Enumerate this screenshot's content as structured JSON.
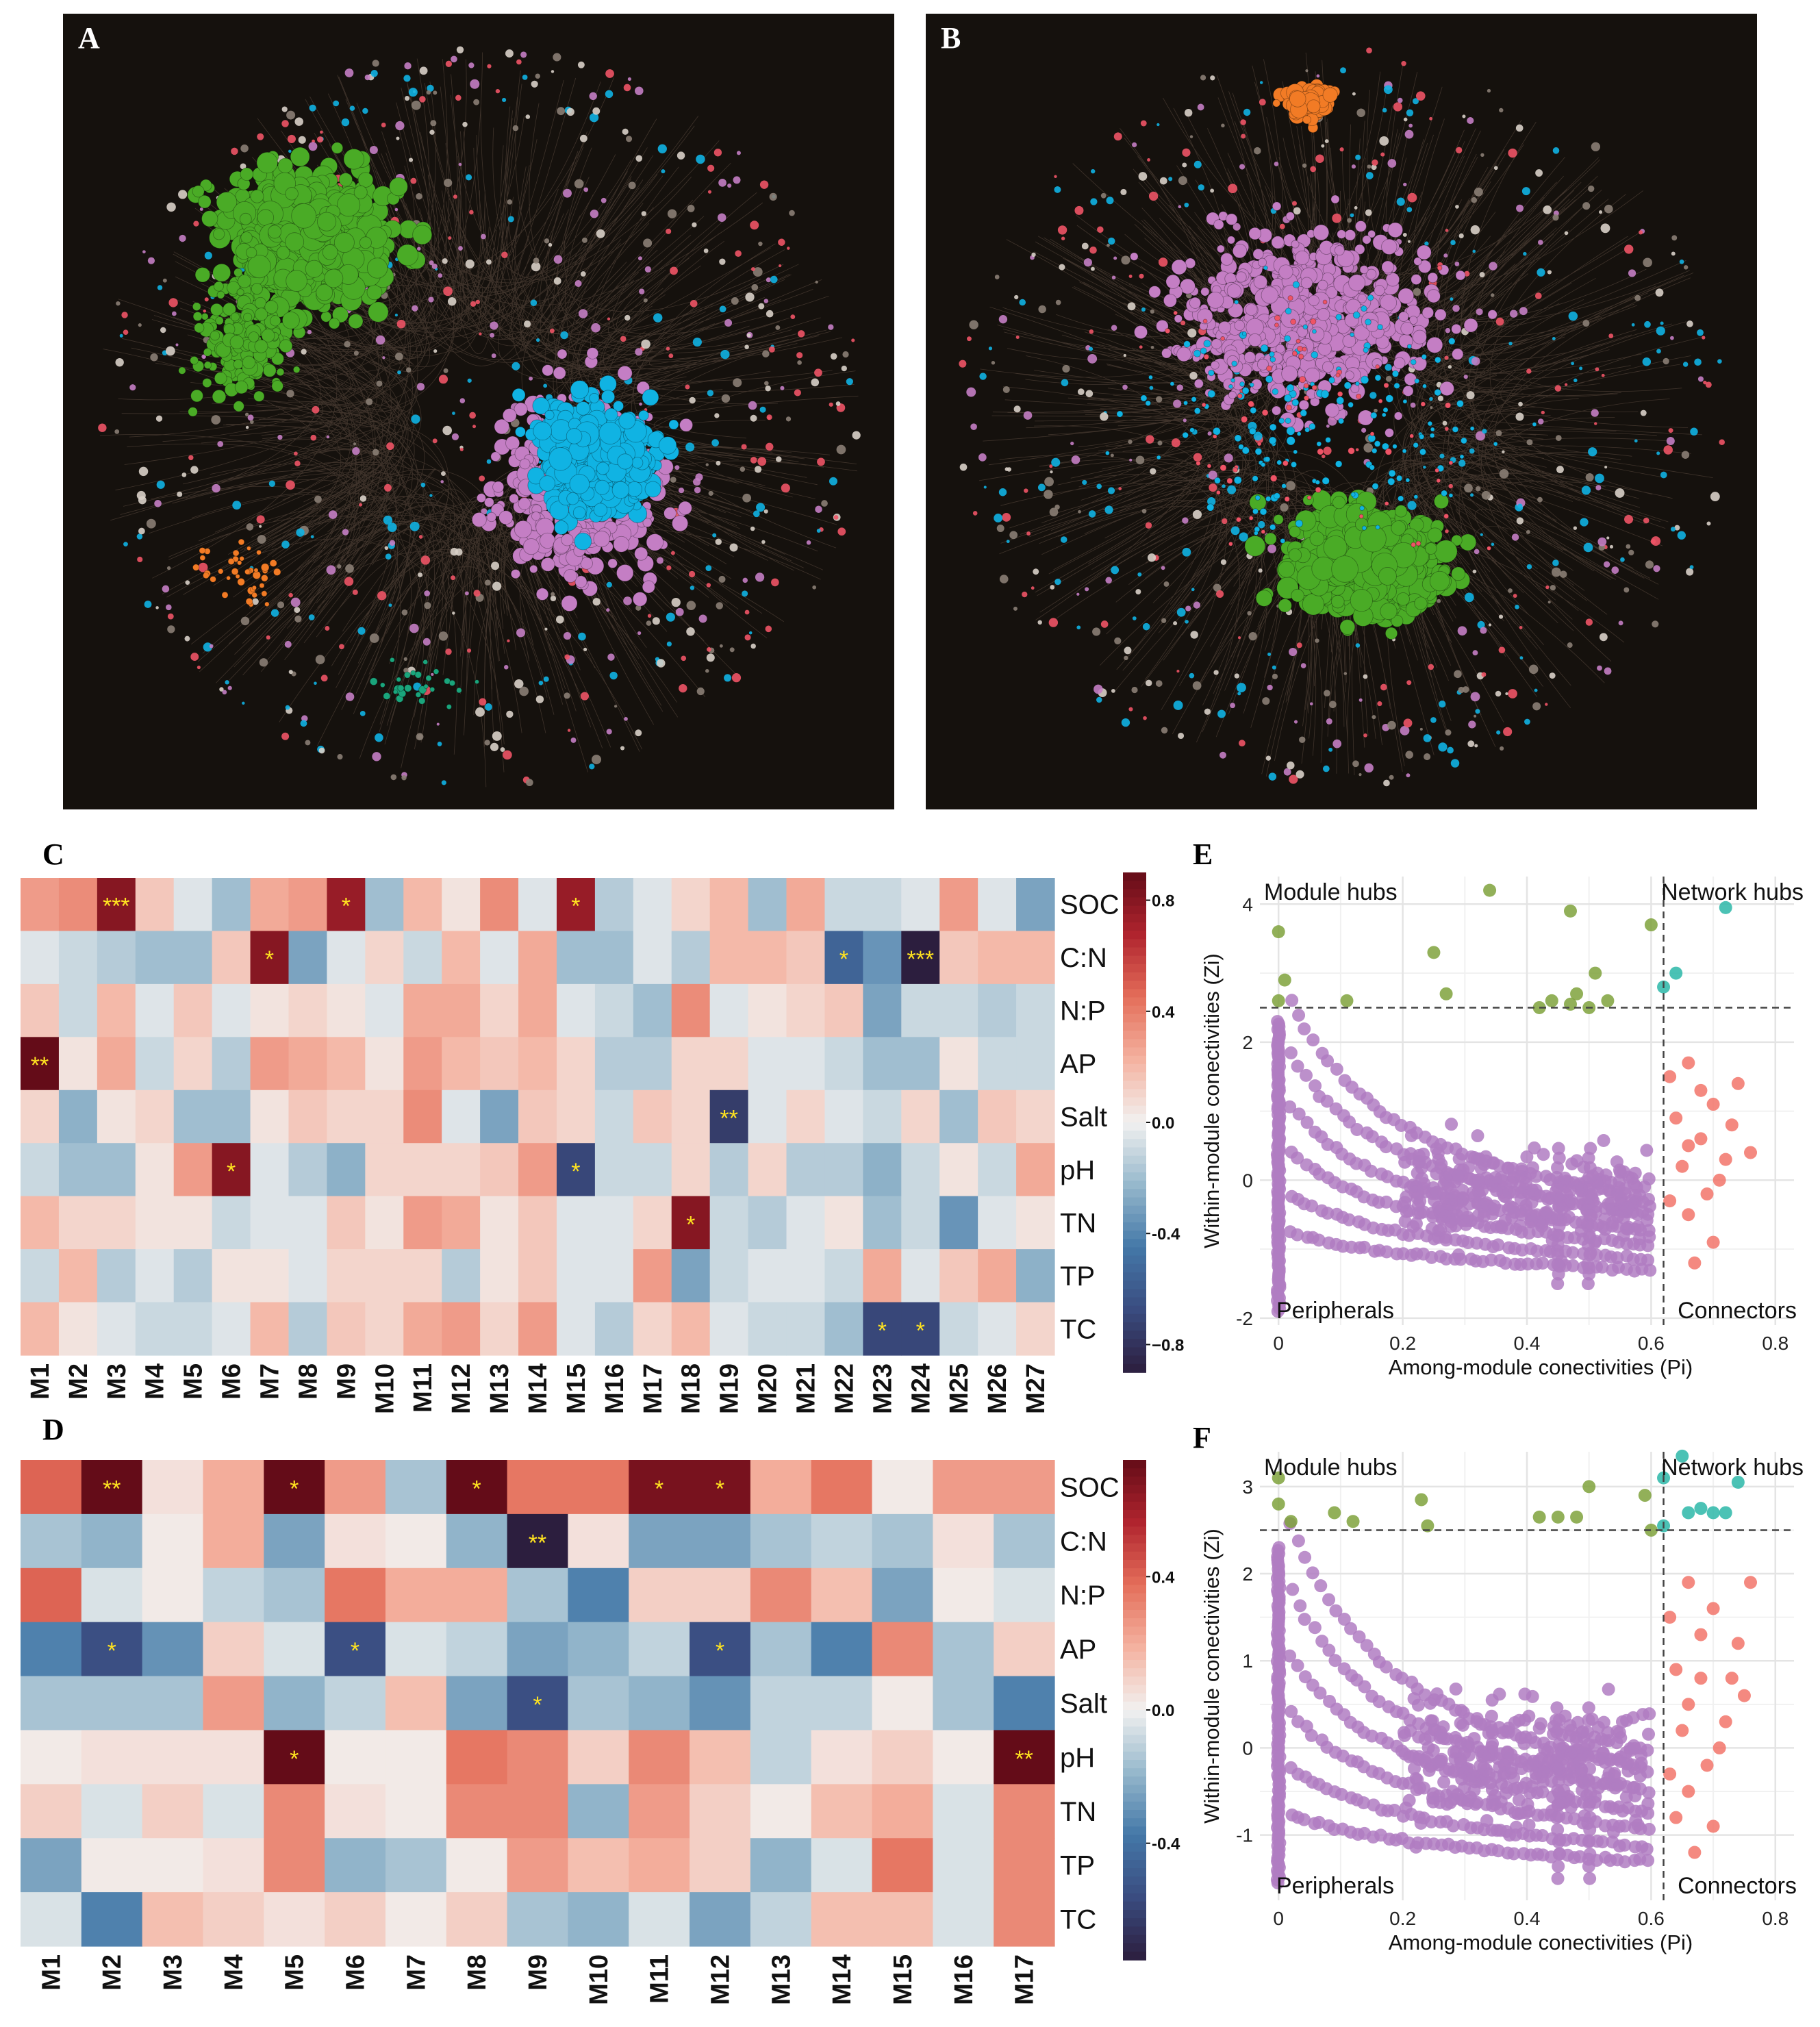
{
  "panels": {
    "A": {
      "letter": "A"
    },
    "B": {
      "letter": "B"
    },
    "C": {
      "letter": "C"
    },
    "D": {
      "letter": "D"
    },
    "E": {
      "letter": "E"
    },
    "F": {
      "letter": "F"
    }
  },
  "network_modules_palette": {
    "green": "#4aab26",
    "cyan": "#10b3e3",
    "pink": "#c47ec4",
    "orange": "#f27b25",
    "red": "#ee5466",
    "teal": "#1aa57c",
    "grey": "#8a7e74"
  },
  "chart_data": [
    {
      "id": "C",
      "type": "heatmap",
      "rows": [
        "SOC",
        "C:N",
        "N:P",
        "AP",
        "Salt",
        "pH",
        "TN",
        "TP",
        "TC"
      ],
      "columns": [
        "M1",
        "M2",
        "M3",
        "M4",
        "M5",
        "M6",
        "M7",
        "M8",
        "M9",
        "M10",
        "M11",
        "M12",
        "M13",
        "M14",
        "M15",
        "M16",
        "M17",
        "M18",
        "M19",
        "M20",
        "M21",
        "M22",
        "M23",
        "M24",
        "M25",
        "M26",
        "M27"
      ],
      "values": [
        [
          0.3,
          0.35,
          0.8,
          0.15,
          -0.05,
          -0.2,
          0.25,
          0.3,
          0.75,
          -0.2,
          0.2,
          0.05,
          0.35,
          -0.05,
          0.75,
          -0.15,
          -0.05,
          0.1,
          0.2,
          -0.2,
          0.25,
          -0.1,
          -0.1,
          -0.05,
          0.3,
          -0.05,
          -0.3
        ],
        [
          -0.05,
          -0.1,
          -0.15,
          -0.2,
          -0.2,
          0.15,
          0.8,
          -0.3,
          -0.05,
          0.1,
          -0.1,
          0.2,
          -0.05,
          0.25,
          -0.2,
          -0.2,
          -0.05,
          -0.15,
          0.2,
          0.2,
          0.15,
          -0.55,
          -0.35,
          -0.9,
          0.15,
          0.2,
          0.2
        ],
        [
          0.15,
          -0.1,
          0.2,
          -0.05,
          0.15,
          -0.05,
          0.05,
          0.1,
          0.05,
          -0.05,
          0.25,
          0.25,
          0.1,
          0.25,
          -0.05,
          -0.1,
          -0.2,
          0.35,
          -0.05,
          0.05,
          0.1,
          0.15,
          -0.3,
          -0.1,
          -0.1,
          -0.15,
          -0.1
        ],
        [
          0.9,
          0.05,
          0.25,
          -0.1,
          0.1,
          -0.15,
          0.3,
          0.25,
          0.2,
          0.05,
          0.3,
          0.2,
          0.15,
          0.2,
          0.1,
          -0.15,
          -0.15,
          0.1,
          0.1,
          -0.05,
          -0.05,
          -0.1,
          -0.2,
          -0.2,
          0.05,
          -0.1,
          -0.1
        ],
        [
          0.1,
          -0.25,
          0.05,
          0.1,
          -0.2,
          -0.2,
          0.05,
          0.15,
          0.1,
          0.1,
          0.35,
          -0.05,
          -0.3,
          0.15,
          0.1,
          -0.1,
          0.15,
          0.1,
          -0.75,
          -0.05,
          0.1,
          -0.05,
          -0.1,
          0.1,
          -0.2,
          0.15,
          0.1
        ],
        [
          -0.1,
          -0.2,
          -0.2,
          0.05,
          0.3,
          0.8,
          -0.05,
          -0.15,
          -0.25,
          0.1,
          0.1,
          0.1,
          0.15,
          0.3,
          -0.7,
          -0.1,
          -0.1,
          0.1,
          -0.15,
          0.1,
          -0.15,
          -0.15,
          -0.25,
          -0.1,
          0.05,
          -0.1,
          0.25
        ],
        [
          0.2,
          0.1,
          0.1,
          0.05,
          0.05,
          -0.1,
          -0.05,
          -0.05,
          0.15,
          0.05,
          0.3,
          0.25,
          0.05,
          0.15,
          -0.05,
          -0.05,
          0.1,
          0.8,
          -0.1,
          -0.15,
          -0.05,
          0.05,
          -0.2,
          -0.1,
          -0.35,
          -0.05,
          0.05
        ],
        [
          -0.1,
          0.2,
          -0.15,
          -0.05,
          -0.15,
          0.05,
          0.05,
          -0.05,
          0.1,
          0.1,
          0.1,
          -0.15,
          0.05,
          0.15,
          -0.05,
          -0.05,
          0.3,
          -0.3,
          -0.1,
          -0.05,
          -0.05,
          -0.1,
          0.25,
          -0.05,
          0.15,
          0.25,
          -0.25
        ],
        [
          0.2,
          0.05,
          -0.05,
          -0.1,
          -0.1,
          -0.05,
          0.2,
          -0.15,
          0.15,
          0.1,
          0.25,
          0.3,
          0.1,
          0.3,
          -0.05,
          -0.15,
          0.1,
          0.2,
          -0.05,
          -0.1,
          -0.1,
          -0.2,
          -0.7,
          -0.7,
          -0.1,
          -0.05,
          0.1
        ]
      ],
      "significance": [
        {
          "row": 0,
          "col": 2,
          "mark": "***"
        },
        {
          "row": 0,
          "col": 8,
          "mark": "*"
        },
        {
          "row": 0,
          "col": 14,
          "mark": "*"
        },
        {
          "row": 1,
          "col": 6,
          "mark": "*"
        },
        {
          "row": 1,
          "col": 21,
          "mark": "*"
        },
        {
          "row": 1,
          "col": 23,
          "mark": "***"
        },
        {
          "row": 3,
          "col": 0,
          "mark": "**"
        },
        {
          "row": 4,
          "col": 18,
          "mark": "**"
        },
        {
          "row": 5,
          "col": 5,
          "mark": "*"
        },
        {
          "row": 5,
          "col": 14,
          "mark": "*"
        },
        {
          "row": 6,
          "col": 17,
          "mark": "*"
        },
        {
          "row": 8,
          "col": 22,
          "mark": "*"
        },
        {
          "row": 8,
          "col": 23,
          "mark": "*"
        }
      ],
      "colorbar": {
        "range": [
          -0.9,
          0.9
        ],
        "ticks": [
          0.8,
          0.4,
          0.0,
          -0.4,
          -0.8
        ],
        "tick_labels": [
          "0.8",
          "0.4",
          "0.0",
          "-0.4",
          "−0.8"
        ]
      }
    },
    {
      "id": "D",
      "type": "heatmap",
      "rows": [
        "SOC",
        "C:N",
        "N:P",
        "AP",
        "Salt",
        "pH",
        "TN",
        "TP",
        "TC"
      ],
      "columns": [
        "M1",
        "M2",
        "M3",
        "M4",
        "M5",
        "M6",
        "M7",
        "M8",
        "M9",
        "M10",
        "M11",
        "M12",
        "M13",
        "M14",
        "M15",
        "M16",
        "M17"
      ],
      "values": [
        [
          0.4,
          0.75,
          0.05,
          0.2,
          0.75,
          0.25,
          -0.15,
          0.75,
          0.35,
          0.35,
          0.7,
          0.7,
          0.2,
          0.35,
          0.02,
          0.25,
          0.25
        ],
        [
          -0.15,
          -0.2,
          0.02,
          0.2,
          -0.25,
          0.05,
          0.02,
          -0.2,
          -0.75,
          0.05,
          -0.25,
          -0.25,
          -0.15,
          -0.1,
          -0.15,
          0.05,
          -0.15
        ],
        [
          0.4,
          -0.05,
          0.02,
          -0.1,
          -0.15,
          0.35,
          0.2,
          0.2,
          -0.15,
          -0.35,
          0.1,
          0.1,
          0.3,
          0.15,
          -0.25,
          0.02,
          -0.05
        ],
        [
          -0.35,
          -0.55,
          -0.3,
          0.1,
          -0.05,
          -0.55,
          -0.05,
          -0.1,
          -0.25,
          -0.2,
          -0.1,
          -0.55,
          -0.15,
          -0.35,
          0.3,
          -0.15,
          0.1
        ],
        [
          -0.15,
          -0.15,
          -0.15,
          0.25,
          -0.2,
          -0.1,
          0.15,
          -0.25,
          -0.55,
          -0.15,
          -0.2,
          -0.3,
          -0.1,
          -0.1,
          0.02,
          -0.15,
          -0.35
        ],
        [
          0.02,
          0.05,
          0.05,
          0.05,
          0.75,
          0.02,
          0.02,
          0.35,
          0.3,
          0.1,
          0.3,
          0.15,
          -0.1,
          0.05,
          0.1,
          0.02,
          0.75
        ],
        [
          0.1,
          -0.05,
          0.1,
          -0.05,
          0.3,
          0.05,
          0.02,
          0.3,
          0.3,
          -0.2,
          0.25,
          0.1,
          0.02,
          0.15,
          0.2,
          -0.05,
          0.3
        ],
        [
          -0.25,
          0.02,
          0.02,
          0.05,
          0.3,
          -0.2,
          -0.15,
          0.02,
          0.25,
          0.15,
          0.2,
          0.1,
          -0.2,
          -0.05,
          0.35,
          -0.05,
          0.3
        ],
        [
          -0.05,
          -0.35,
          0.15,
          0.1,
          0.05,
          0.1,
          0.02,
          0.1,
          -0.15,
          -0.2,
          -0.05,
          -0.25,
          -0.1,
          0.15,
          0.15,
          -0.05,
          0.3
        ]
      ],
      "significance": [
        {
          "row": 0,
          "col": 1,
          "mark": "**"
        },
        {
          "row": 0,
          "col": 4,
          "mark": "*"
        },
        {
          "row": 0,
          "col": 7,
          "mark": "*"
        },
        {
          "row": 0,
          "col": 10,
          "mark": "*"
        },
        {
          "row": 0,
          "col": 11,
          "mark": "*"
        },
        {
          "row": 1,
          "col": 8,
          "mark": "**"
        },
        {
          "row": 3,
          "col": 1,
          "mark": "*"
        },
        {
          "row": 3,
          "col": 5,
          "mark": "*"
        },
        {
          "row": 3,
          "col": 11,
          "mark": "*"
        },
        {
          "row": 4,
          "col": 8,
          "mark": "*"
        },
        {
          "row": 5,
          "col": 4,
          "mark": "*"
        },
        {
          "row": 5,
          "col": 16,
          "mark": "**"
        }
      ],
      "colorbar": {
        "range": [
          -0.75,
          0.75
        ],
        "ticks": [
          0.4,
          0.0,
          -0.4
        ],
        "tick_labels": [
          "0.4",
          "0.0",
          "-0.4"
        ]
      }
    },
    {
      "id": "E",
      "type": "scatter",
      "xlabel": "Among-module conectivities (Pi)",
      "ylabel": "Within-module conectivities (Zi)",
      "xlim": [
        -0.03,
        0.83
      ],
      "ylim": [
        -2.1,
        4.4
      ],
      "xticks": [
        0,
        0.2,
        0.4,
        0.6,
        0.8
      ],
      "xtick_labels": [
        "0",
        "0.2",
        "0.4",
        "0.6",
        "0.8"
      ],
      "yticks": [
        -2,
        0,
        2,
        4
      ],
      "ytick_labels": [
        "-2",
        "0",
        "2",
        "4"
      ],
      "thresholds": {
        "pi": 0.62,
        "zi": 2.5
      },
      "quadrant_labels": {
        "tl": "Module hubs",
        "tr": "Network hubs",
        "bl": "Peripherals",
        "br": "Connectors"
      },
      "colors": {
        "module_hubs": "#7fa23c",
        "network_hubs": "#2bb7a8",
        "peripherals": "#b07cc2",
        "connectors": "#f2746a"
      },
      "module_hubs": [
        [
          0.34,
          4.2
        ],
        [
          0.47,
          3.9
        ],
        [
          0.25,
          3.3
        ],
        [
          0.6,
          3.7
        ],
        [
          0.0,
          3.6
        ],
        [
          0.51,
          3.0
        ],
        [
          0.27,
          2.7
        ],
        [
          0.44,
          2.6
        ],
        [
          0.48,
          2.7
        ],
        [
          0.53,
          2.6
        ],
        [
          0.5,
          2.5
        ],
        [
          0.42,
          2.5
        ],
        [
          0.11,
          2.6
        ],
        [
          0.0,
          2.6
        ],
        [
          0.01,
          2.9
        ],
        [
          0.47,
          2.55
        ]
      ],
      "network_hubs": [
        [
          0.72,
          3.95
        ],
        [
          0.64,
          3.0
        ],
        [
          0.62,
          2.8
        ]
      ],
      "connectors": [
        [
          0.66,
          1.7
        ],
        [
          0.7,
          1.1
        ],
        [
          0.74,
          1.4
        ],
        [
          0.68,
          0.6
        ],
        [
          0.72,
          0.3
        ],
        [
          0.64,
          0.9
        ],
        [
          0.66,
          -0.5
        ],
        [
          0.7,
          -0.9
        ],
        [
          0.63,
          -0.3
        ],
        [
          0.76,
          0.4
        ],
        [
          0.68,
          1.3
        ],
        [
          0.65,
          0.2
        ],
        [
          0.73,
          0.8
        ],
        [
          0.69,
          -0.2
        ],
        [
          0.67,
          -1.2
        ],
        [
          0.63,
          1.5
        ],
        [
          0.71,
          0.0
        ],
        [
          0.66,
          0.5
        ]
      ],
      "peripheral_arcs": {
        "k_values": [
          1.8,
          1.45,
          1.1,
          0.8,
          0.5,
          0.25
        ],
        "pi_range": [
          0.02,
          0.6
        ],
        "zi_floor": -1.9
      },
      "peripheral_scatter_count": 260,
      "peripheral_axis_line": {
        "pi": 0.0,
        "zi_range": [
          -1.9,
          2.3
        ]
      }
    },
    {
      "id": "F",
      "type": "scatter",
      "xlabel": "Among-module conectivities (Pi)",
      "ylabel": "Within-module conectivities (Zi)",
      "xlim": [
        -0.03,
        0.83
      ],
      "ylim": [
        -1.75,
        3.4
      ],
      "xticks": [
        0,
        0.2,
        0.4,
        0.6,
        0.8
      ],
      "xtick_labels": [
        "0",
        "0.2",
        "0.4",
        "0.6",
        "0.8"
      ],
      "yticks": [
        -1,
        0,
        1,
        2,
        3
      ],
      "ytick_labels": [
        "-1",
        "0",
        "1",
        "2",
        "3"
      ],
      "thresholds": {
        "pi": 0.62,
        "zi": 2.5
      },
      "quadrant_labels": {
        "tl": "Module hubs",
        "tr": "Network hubs",
        "bl": "Peripherals",
        "br": "Connectors"
      },
      "colors": {
        "module_hubs": "#7fa23c",
        "network_hubs": "#2bb7a8",
        "peripherals": "#b07cc2",
        "connectors": "#f2746a"
      },
      "module_hubs": [
        [
          0.0,
          3.1
        ],
        [
          0.23,
          2.85
        ],
        [
          0.24,
          2.55
        ],
        [
          0.09,
          2.7
        ],
        [
          0.12,
          2.6
        ],
        [
          0.02,
          2.6
        ],
        [
          0.5,
          3.0
        ],
        [
          0.45,
          2.65
        ],
        [
          0.48,
          2.65
        ],
        [
          0.42,
          2.65
        ],
        [
          0.59,
          2.9
        ],
        [
          0.6,
          2.5
        ],
        [
          0.0,
          2.8
        ]
      ],
      "network_hubs": [
        [
          0.65,
          3.35
        ],
        [
          0.74,
          3.05
        ],
        [
          0.62,
          3.1
        ],
        [
          0.68,
          2.75
        ],
        [
          0.7,
          2.7
        ],
        [
          0.72,
          2.7
        ],
        [
          0.66,
          2.7
        ],
        [
          0.62,
          2.55
        ]
      ],
      "connectors": [
        [
          0.66,
          1.9
        ],
        [
          0.7,
          1.6
        ],
        [
          0.74,
          1.2
        ],
        [
          0.68,
          0.8
        ],
        [
          0.72,
          0.3
        ],
        [
          0.64,
          0.9
        ],
        [
          0.66,
          -0.5
        ],
        [
          0.7,
          -0.9
        ],
        [
          0.63,
          -0.3
        ],
        [
          0.76,
          1.9
        ],
        [
          0.68,
          1.3
        ],
        [
          0.65,
          0.2
        ],
        [
          0.73,
          0.8
        ],
        [
          0.69,
          -0.2
        ],
        [
          0.67,
          -1.2
        ],
        [
          0.63,
          1.5
        ],
        [
          0.71,
          0.0
        ],
        [
          0.66,
          0.5
        ],
        [
          0.75,
          0.6
        ],
        [
          0.64,
          -0.8
        ]
      ],
      "peripheral_arcs": {
        "k_values": [
          1.8,
          1.45,
          1.1,
          0.8,
          0.5,
          0.25
        ],
        "pi_range": [
          0.02,
          0.6
        ],
        "zi_floor": -1.55
      },
      "peripheral_scatter_count": 280,
      "peripheral_axis_line": {
        "pi": 0.0,
        "zi_range": [
          -1.55,
          2.3
        ]
      }
    }
  ]
}
